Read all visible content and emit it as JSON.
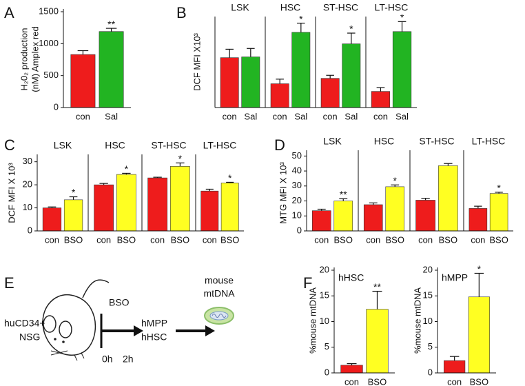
{
  "chart_data": [
    {
      "type": "bar",
      "panel": "A",
      "ylabel": [
        "H₂0₂ production",
        "(nM) Amplex red"
      ],
      "ylim": [
        0,
        1500
      ],
      "yticks": [
        0,
        500,
        1000,
        1500
      ],
      "colors": [
        "#ee1c1c",
        "#22b422"
      ],
      "facets": [
        {
          "categories": [
            "con",
            "Sal"
          ],
          "values": [
            830,
            1190
          ],
          "errors": [
            60,
            50
          ],
          "annotations": [
            null,
            "**"
          ]
        }
      ]
    },
    {
      "type": "bar",
      "panel": "B",
      "ylabel": [
        "DCF MFI X10³"
      ],
      "ylim": [
        0,
        11.5
      ],
      "colors": [
        "#ee1c1c",
        "#22b422"
      ],
      "facets": [
        {
          "title": "LSK",
          "categories": [
            "con",
            "Sal"
          ],
          "values": [
            6.5,
            6.6
          ],
          "errors": [
            1.1,
            1.1
          ],
          "annotations": [
            null,
            null
          ]
        },
        {
          "title": "HSC",
          "categories": [
            "con",
            "Sal"
          ],
          "values": [
            3.1,
            9.8
          ],
          "errors": [
            0.6,
            1.2
          ],
          "annotations": [
            null,
            "*"
          ]
        },
        {
          "title": "ST-HSC",
          "categories": [
            "con",
            "Sal"
          ],
          "values": [
            3.8,
            8.3
          ],
          "errors": [
            0.4,
            1.4
          ],
          "annotations": [
            null,
            "*"
          ]
        },
        {
          "title": "LT-HSC",
          "categories": [
            "con",
            "Sal"
          ],
          "values": [
            2.1,
            9.9
          ],
          "errors": [
            0.5,
            1.3
          ],
          "annotations": [
            null,
            "*"
          ]
        }
      ]
    },
    {
      "type": "bar",
      "panel": "C",
      "ylabel": [
        "DCF MFI X 10³"
      ],
      "ylim": [
        0,
        32
      ],
      "yticks": [
        0,
        10,
        20,
        30
      ],
      "colors": [
        "#ee1c1c",
        "#ffff22"
      ],
      "facets": [
        {
          "title": "LSK",
          "categories": [
            "con",
            "BSO"
          ],
          "values": [
            10,
            13.5
          ],
          "errors": [
            0.4,
            1.3
          ],
          "annotations": [
            null,
            "*"
          ]
        },
        {
          "title": "HSC",
          "categories": [
            "con",
            "BSO"
          ],
          "values": [
            20,
            24.5
          ],
          "errors": [
            0.6,
            0.5
          ],
          "annotations": [
            null,
            "*"
          ]
        },
        {
          "title": "ST-HSC",
          "categories": [
            "con",
            "BSO"
          ],
          "values": [
            23,
            28
          ],
          "errors": [
            0.3,
            1.5
          ],
          "annotations": [
            null,
            "*"
          ]
        },
        {
          "title": "LT-HSC",
          "categories": [
            "con",
            "BSO"
          ],
          "values": [
            17.3,
            20.8
          ],
          "errors": [
            0.8,
            0.3
          ],
          "annotations": [
            null,
            "*"
          ]
        }
      ]
    },
    {
      "type": "bar",
      "panel": "D",
      "ylabel": [
        "MTG MFI X 10³"
      ],
      "ylim": [
        0,
        52
      ],
      "yticks": [
        0,
        10,
        20,
        30,
        40,
        50
      ],
      "colors": [
        "#ee1c1c",
        "#ffff22"
      ],
      "facets": [
        {
          "title": "LSK",
          "categories": [
            "con",
            "BSO"
          ],
          "values": [
            13.5,
            20
          ],
          "errors": [
            1,
            1.5
          ],
          "annotations": [
            null,
            "**"
          ]
        },
        {
          "title": "HSC",
          "categories": [
            "con",
            "BSO"
          ],
          "values": [
            17.5,
            29.5
          ],
          "errors": [
            1.2,
            1.2
          ],
          "annotations": [
            null,
            "*"
          ]
        },
        {
          "title": "ST-HSC",
          "categories": [
            "con",
            "BSO"
          ],
          "values": [
            20.5,
            43.5
          ],
          "errors": [
            1.3,
            1.5
          ],
          "annotations": [
            null,
            null
          ]
        },
        {
          "title": "LT-HSC",
          "categories": [
            "con",
            "BSO"
          ],
          "values": [
            15,
            25
          ],
          "errors": [
            1.5,
            0.8
          ],
          "annotations": [
            null,
            "*"
          ]
        }
      ]
    },
    {
      "type": "bar",
      "panel": "F",
      "ylabel": [
        "%mouse mtDNA"
      ],
      "ylim": [
        0,
        20
      ],
      "yticks": [
        0,
        5,
        10,
        15,
        20
      ],
      "colors": [
        "#ee1c1c",
        "#ffff22"
      ],
      "facets": [
        {
          "title": "hHSC",
          "categories": [
            "con",
            "BSO"
          ],
          "values": [
            1.5,
            12.4
          ],
          "errors": [
            0.3,
            3.5
          ],
          "annotations": [
            null,
            "**"
          ]
        }
      ]
    },
    {
      "type": "bar",
      "ylabel": [
        "%mouse mtDNA"
      ],
      "ylim": [
        0,
        20
      ],
      "yticks": [
        0,
        5,
        10,
        15,
        20
      ],
      "colors": [
        "#ee1c1c",
        "#ffff22"
      ],
      "facets": [
        {
          "title": "hMPP",
          "categories": [
            "con",
            "BSO"
          ],
          "values": [
            2.4,
            14.8
          ],
          "errors": [
            0.8,
            4.6
          ],
          "annotations": [
            null,
            "*"
          ]
        }
      ]
    }
  ],
  "diagram": {
    "panel": "E",
    "labels": [
      "huCD34+",
      "NSG",
      "BSO",
      "0h",
      "2h",
      "hMPP",
      "hHSC",
      "mouse",
      "mtDNA"
    ]
  }
}
